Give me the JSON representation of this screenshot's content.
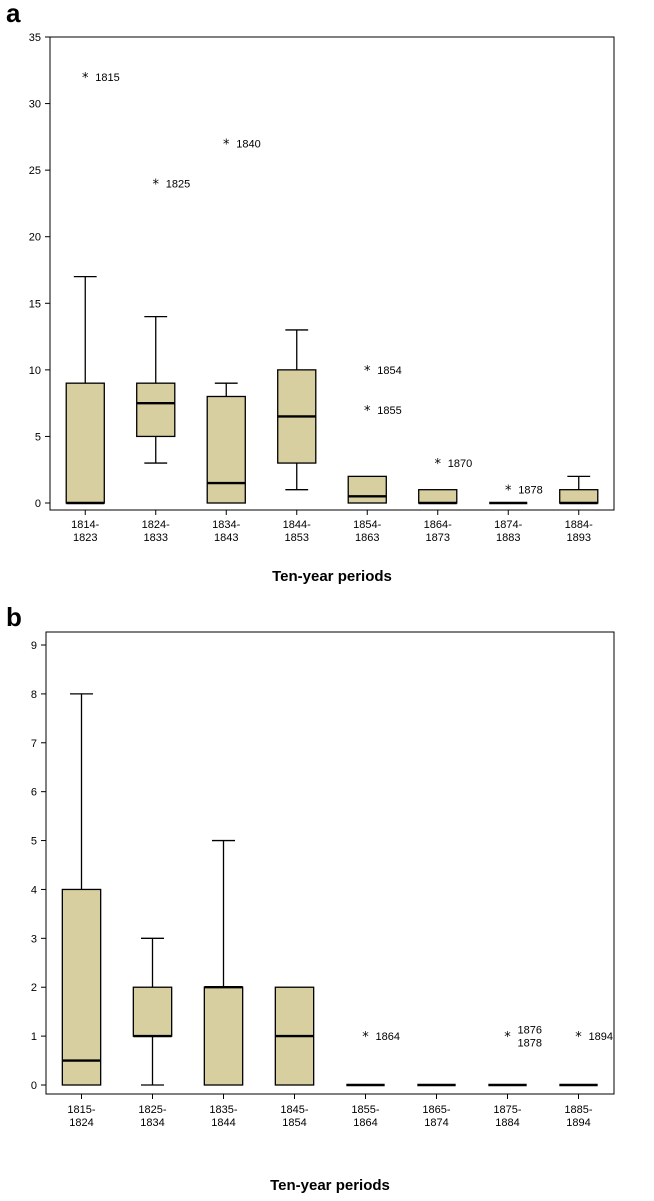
{
  "colors": {
    "box_fill": "#D8CFA0",
    "stroke": "#000000",
    "background": "#FFFFFF"
  },
  "chart_data": [
    {
      "panel": "a",
      "type": "box",
      "xlabel": "Ten-year periods",
      "ylabel": "",
      "ylim": [
        0,
        35
      ],
      "yticks": [
        0,
        5,
        10,
        15,
        20,
        25,
        30,
        35
      ],
      "categories": [
        "1814-\n1823",
        "1824-\n1833",
        "1834-\n1843",
        "1844-\n1853",
        "1854-\n1863",
        "1864-\n1873",
        "1874-\n1883",
        "1884-\n1893"
      ],
      "boxes": [
        {
          "min": 0,
          "q1": 0,
          "median": 0,
          "q3": 9,
          "max": 17
        },
        {
          "min": 3,
          "q1": 5,
          "median": 7.5,
          "q3": 9,
          "max": 14
        },
        {
          "min": 0,
          "q1": 0,
          "median": 1.5,
          "q3": 8,
          "max": 9
        },
        {
          "min": 1,
          "q1": 3,
          "median": 6.5,
          "q3": 10,
          "max": 13
        },
        {
          "min": 0,
          "q1": 0,
          "median": 0.5,
          "q3": 2,
          "max": 2
        },
        {
          "min": 0,
          "q1": 0,
          "median": 0,
          "q3": 1,
          "max": 1
        },
        {
          "min": 0,
          "q1": 0,
          "median": 0,
          "q3": 0,
          "max": 0
        },
        {
          "min": 0,
          "q1": 0,
          "median": 0,
          "q3": 1,
          "max": 2
        }
      ],
      "outliers": [
        {
          "category": 0,
          "value": 32,
          "label": "1815"
        },
        {
          "category": 1,
          "value": 24,
          "label": "1825"
        },
        {
          "category": 2,
          "value": 27,
          "label": "1840"
        },
        {
          "category": 4,
          "value": 10,
          "label": "1854"
        },
        {
          "category": 4,
          "value": 7,
          "label": "1855"
        },
        {
          "category": 5,
          "value": 3,
          "label": "1870"
        },
        {
          "category": 6,
          "value": 1,
          "label": "1878"
        }
      ]
    },
    {
      "panel": "b",
      "type": "box",
      "xlabel": "Ten-year periods",
      "ylabel": "",
      "ylim": [
        0,
        9
      ],
      "yticks": [
        0,
        1,
        2,
        3,
        4,
        5,
        6,
        7,
        8,
        9
      ],
      "categories": [
        "1815-\n1824",
        "1825-\n1834",
        "1835-\n1844",
        "1845-\n1854",
        "1855-\n1864",
        "1865-\n1874",
        "1875-\n1884",
        "1885-\n1894"
      ],
      "boxes": [
        {
          "min": 0,
          "q1": 0,
          "median": 0.5,
          "q3": 4,
          "max": 8
        },
        {
          "min": 0,
          "q1": 1,
          "median": 1,
          "q3": 2,
          "max": 3
        },
        {
          "min": 0,
          "q1": 0,
          "median": 2,
          "q3": 2,
          "max": 5
        },
        {
          "min": 0,
          "q1": 0,
          "median": 1,
          "q3": 2,
          "max": 2
        },
        {
          "min": 0,
          "q1": 0,
          "median": 0,
          "q3": 0,
          "max": 0
        },
        {
          "min": 0,
          "q1": 0,
          "median": 0,
          "q3": 0,
          "max": 0
        },
        {
          "min": 0,
          "q1": 0,
          "median": 0,
          "q3": 0,
          "max": 0
        },
        {
          "min": 0,
          "q1": 0,
          "median": 0,
          "q3": 0,
          "max": 0
        }
      ],
      "outliers": [
        {
          "category": 4,
          "value": 1,
          "label": "1864"
        },
        {
          "category": 6,
          "value": 1,
          "label": "1876\n1878"
        },
        {
          "category": 7,
          "value": 1,
          "label": "1894"
        }
      ]
    }
  ]
}
